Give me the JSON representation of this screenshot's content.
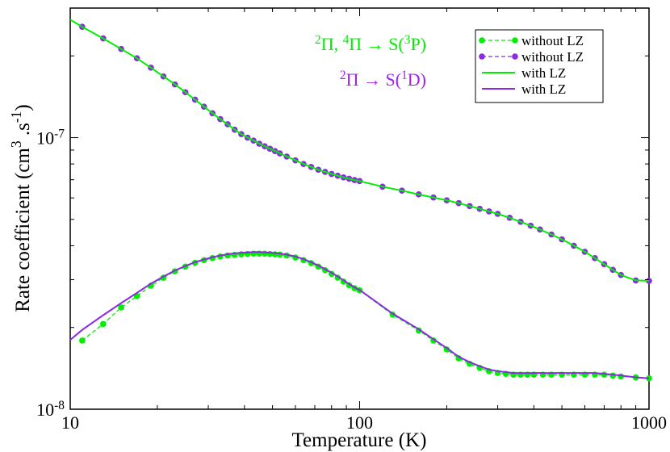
{
  "chart_data": {
    "type": "line",
    "title": "",
    "xlabel": "Temperature (K)",
    "ylabel_main": "Rate coefficient (cm",
    "ylabel_sup1": "3",
    "ylabel_mid": " .s",
    "ylabel_sup2": "-1",
    "ylabel_end": ")",
    "x_scale": "log",
    "y_scale": "log",
    "xlim": [
      10,
      1000
    ],
    "ylim": [
      1e-08,
      3e-07
    ],
    "x_ticks": [
      {
        "value": 10,
        "label": "10"
      },
      {
        "value": 100,
        "label": "100"
      },
      {
        "value": 1000,
        "label": "1000"
      }
    ],
    "y_ticks": [
      {
        "value": 1e-08,
        "base": "10",
        "exp": "-8"
      },
      {
        "value": 1e-07,
        "base": "10",
        "exp": "-7"
      }
    ],
    "grid": false,
    "legend_position": "top-right",
    "annotations": [
      {
        "id": "green",
        "color": "#00ee00",
        "parts": [
          {
            "t": "2",
            "sup": true
          },
          {
            "t": "Π, "
          },
          {
            "t": "4",
            "sup": true
          },
          {
            "t": "Π → S("
          },
          {
            "t": "3",
            "sup": true
          },
          {
            "t": "P)"
          }
        ]
      },
      {
        "id": "purple",
        "color": "#a020f0",
        "parts": [
          {
            "t": "2",
            "sup": true
          },
          {
            "t": "Π → S("
          },
          {
            "t": "1",
            "sup": true
          },
          {
            "t": "D)"
          }
        ]
      }
    ],
    "series": [
      {
        "name": "without LZ",
        "color": "#00ee00",
        "style": "dashed-dots",
        "group": "lower",
        "x": [
          11,
          13,
          15,
          17,
          19,
          21,
          23,
          25,
          27,
          29,
          31,
          33,
          35,
          37,
          39,
          41,
          43,
          45,
          47,
          49,
          51,
          53,
          56,
          60,
          64,
          68,
          72,
          76,
          80,
          84,
          88,
          92,
          96,
          100,
          130,
          160,
          180,
          200,
          220,
          240,
          260,
          280,
          300,
          320,
          340,
          360,
          380,
          400,
          430,
          460,
          500,
          550,
          600,
          650,
          700,
          750,
          800,
          900,
          1000
        ],
        "y": [
          1.79e-08,
          2.06e-08,
          2.37e-08,
          2.61e-08,
          2.85e-08,
          3.05e-08,
          3.22e-08,
          3.35e-08,
          3.46e-08,
          3.54e-08,
          3.6e-08,
          3.65e-08,
          3.68e-08,
          3.7e-08,
          3.72e-08,
          3.73e-08,
          3.74e-08,
          3.74e-08,
          3.74e-08,
          3.73e-08,
          3.72e-08,
          3.71e-08,
          3.68e-08,
          3.62e-08,
          3.54e-08,
          3.45e-08,
          3.35e-08,
          3.25e-08,
          3.15e-08,
          3.05e-08,
          2.95e-08,
          2.86e-08,
          2.79e-08,
          2.74e-08,
          2.23e-08,
          1.95e-08,
          1.79e-08,
          1.66e-08,
          1.54e-08,
          1.47e-08,
          1.42e-08,
          1.38e-08,
          1.36e-08,
          1.35e-08,
          1.34e-08,
          1.34e-08,
          1.34e-08,
          1.34e-08,
          1.34e-08,
          1.34e-08,
          1.34e-08,
          1.34e-08,
          1.34e-08,
          1.34e-08,
          1.34e-08,
          1.33e-08,
          1.32e-08,
          1.31e-08,
          1.3e-08
        ]
      },
      {
        "name": "without LZ",
        "color": "#8a2be2",
        "style": "dashed-dots",
        "group": "upper",
        "x": [
          11,
          13,
          15,
          17,
          19,
          21,
          23,
          25,
          27,
          29,
          31,
          33,
          35,
          37,
          39,
          41,
          43,
          45,
          47,
          49,
          51,
          53,
          56,
          60,
          64,
          68,
          72,
          76,
          80,
          84,
          88,
          92,
          96,
          100,
          120,
          140,
          160,
          180,
          200,
          220,
          240,
          260,
          280,
          300,
          330,
          360,
          390,
          420,
          460,
          500,
          550,
          600,
          650,
          700,
          750,
          800,
          900,
          1000
        ],
        "y": [
          2.56e-07,
          2.32e-07,
          2.12e-07,
          1.96e-07,
          1.81e-07,
          1.68e-07,
          1.57e-07,
          1.47e-07,
          1.38e-07,
          1.3e-07,
          1.23e-07,
          1.17e-07,
          1.12e-07,
          1.07e-07,
          1.03e-07,
          1e-07,
          9.75e-08,
          9.5e-08,
          9.3e-08,
          9.1e-08,
          8.92e-08,
          8.75e-08,
          8.52e-08,
          8.25e-08,
          8e-08,
          7.8e-08,
          7.62e-08,
          7.48e-08,
          7.35e-08,
          7.24e-08,
          7.14e-08,
          7.06e-08,
          6.98e-08,
          6.92e-08,
          6.6e-08,
          6.38e-08,
          6.18e-08,
          6.02e-08,
          5.88e-08,
          5.74e-08,
          5.6e-08,
          5.47e-08,
          5.35e-08,
          5.24e-08,
          5.07e-08,
          4.9e-08,
          4.74e-08,
          4.59e-08,
          4.4e-08,
          4.22e-08,
          4e-08,
          3.8e-08,
          3.6e-08,
          3.42e-08,
          3.26e-08,
          3.12e-08,
          2.98e-08,
          2.97e-08
        ]
      },
      {
        "name": "with LZ",
        "color": "#00ee00",
        "style": "solid",
        "group": "upper",
        "x": [
          10,
          11,
          13,
          15,
          17,
          19,
          21,
          23,
          25,
          27,
          29,
          31,
          33,
          35,
          37,
          39,
          41,
          43,
          45,
          47,
          49,
          51,
          53,
          56,
          60,
          64,
          68,
          72,
          76,
          80,
          84,
          88,
          92,
          96,
          100,
          120,
          140,
          160,
          180,
          200,
          220,
          240,
          260,
          280,
          300,
          330,
          360,
          390,
          420,
          460,
          500,
          550,
          600,
          650,
          700,
          750,
          800,
          900,
          1000
        ],
        "y": [
          2.72e-07,
          2.56e-07,
          2.32e-07,
          2.12e-07,
          1.96e-07,
          1.81e-07,
          1.68e-07,
          1.57e-07,
          1.47e-07,
          1.38e-07,
          1.3e-07,
          1.23e-07,
          1.17e-07,
          1.12e-07,
          1.07e-07,
          1.03e-07,
          1e-07,
          9.75e-08,
          9.5e-08,
          9.3e-08,
          9.1e-08,
          8.92e-08,
          8.75e-08,
          8.52e-08,
          8.25e-08,
          8e-08,
          7.8e-08,
          7.62e-08,
          7.48e-08,
          7.35e-08,
          7.24e-08,
          7.14e-08,
          7.06e-08,
          6.98e-08,
          6.92e-08,
          6.6e-08,
          6.38e-08,
          6.18e-08,
          6.02e-08,
          5.88e-08,
          5.74e-08,
          5.6e-08,
          5.47e-08,
          5.35e-08,
          5.24e-08,
          5.07e-08,
          4.9e-08,
          4.74e-08,
          4.59e-08,
          4.4e-08,
          4.22e-08,
          4e-08,
          3.8e-08,
          3.6e-08,
          3.42e-08,
          3.26e-08,
          3.12e-08,
          2.98e-08,
          2.97e-08
        ]
      },
      {
        "name": "with LZ",
        "color": "#8a2be2",
        "style": "solid",
        "group": "lower",
        "x": [
          10,
          11,
          13,
          15,
          17,
          19,
          21,
          23,
          25,
          27,
          29,
          31,
          33,
          35,
          37,
          39,
          41,
          43,
          45,
          47,
          49,
          51,
          53,
          56,
          60,
          64,
          68,
          72,
          76,
          80,
          84,
          88,
          92,
          96,
          100,
          130,
          160,
          180,
          200,
          220,
          240,
          260,
          280,
          300,
          320,
          340,
          360,
          380,
          400,
          430,
          460,
          500,
          550,
          600,
          650,
          700,
          750,
          800,
          900,
          1000
        ],
        "y": [
          1.8e-08,
          1.96e-08,
          2.22e-08,
          2.46e-08,
          2.68e-08,
          2.9e-08,
          3.08e-08,
          3.24e-08,
          3.37e-08,
          3.48e-08,
          3.56e-08,
          3.63e-08,
          3.68e-08,
          3.72e-08,
          3.75e-08,
          3.77e-08,
          3.78e-08,
          3.79e-08,
          3.79e-08,
          3.78e-08,
          3.77e-08,
          3.76e-08,
          3.74e-08,
          3.71e-08,
          3.65e-08,
          3.57e-08,
          3.48e-08,
          3.38e-08,
          3.28e-08,
          3.18e-08,
          3.08e-08,
          2.98e-08,
          2.89e-08,
          2.81e-08,
          2.75e-08,
          2.25e-08,
          1.97e-08,
          1.81e-08,
          1.68e-08,
          1.56e-08,
          1.49e-08,
          1.44e-08,
          1.4e-08,
          1.38e-08,
          1.37e-08,
          1.36e-08,
          1.36e-08,
          1.36e-08,
          1.36e-08,
          1.36e-08,
          1.36e-08,
          1.36e-08,
          1.36e-08,
          1.36e-08,
          1.36e-08,
          1.35e-08,
          1.34e-08,
          1.33e-08,
          1.31e-08,
          1.3e-08
        ]
      }
    ]
  }
}
